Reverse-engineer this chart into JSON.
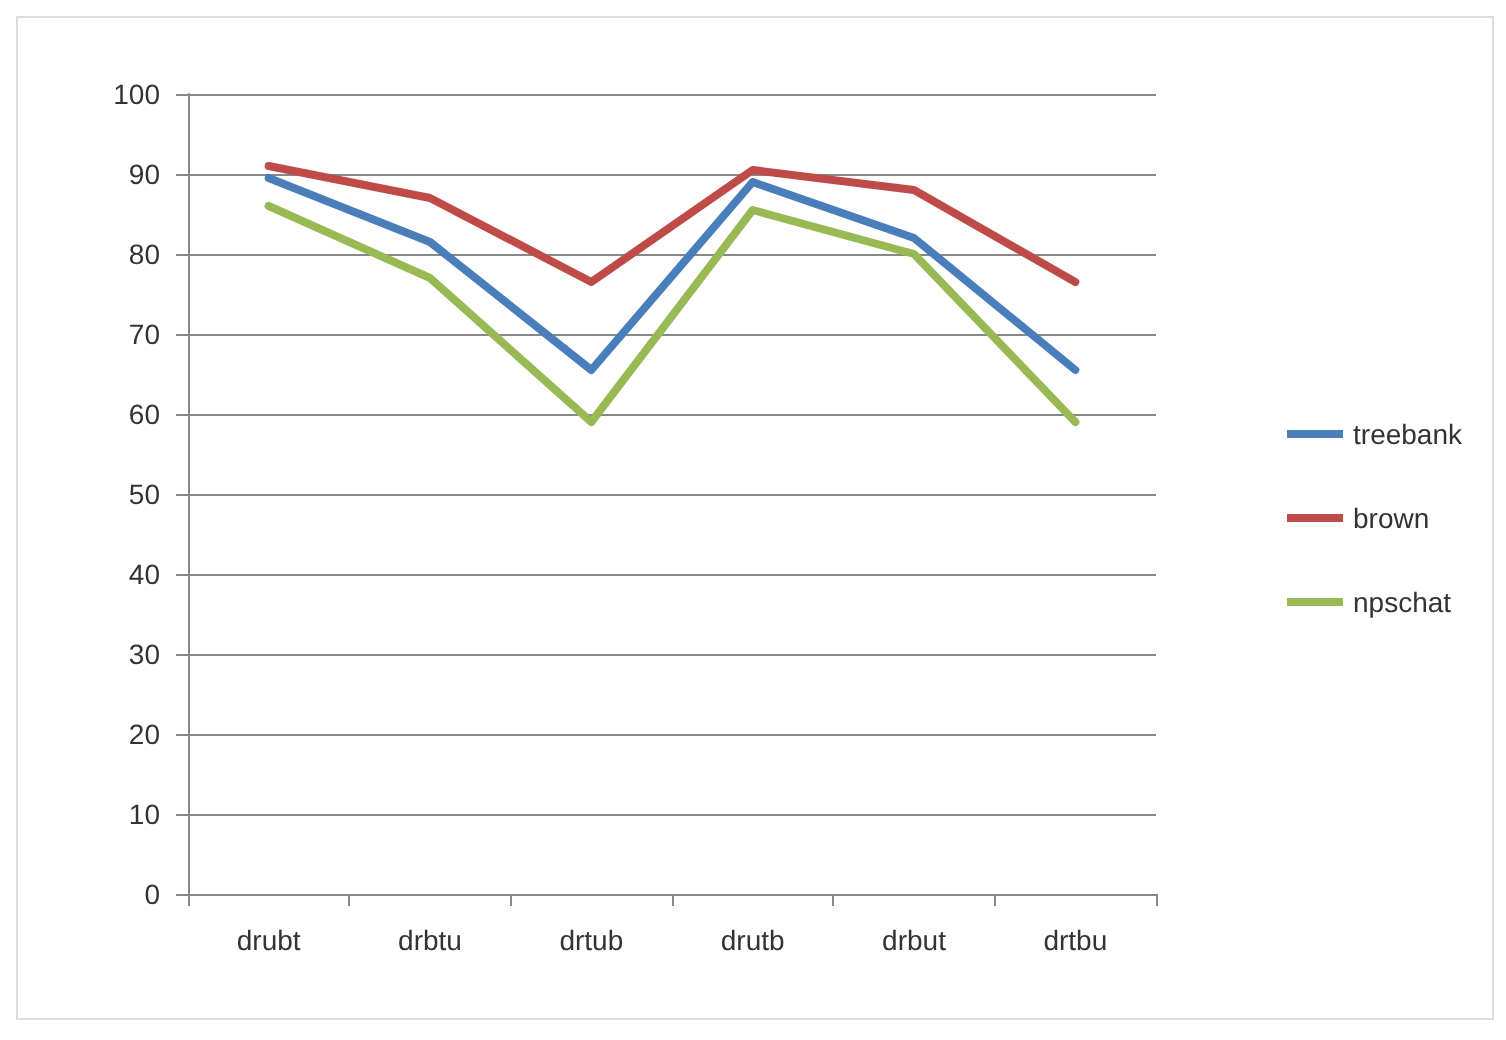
{
  "chart_data": {
    "type": "line",
    "categories": [
      "drubt",
      "drbtu",
      "drtub",
      "drutb",
      "drbut",
      "drtbu"
    ],
    "series": [
      {
        "name": "treebank",
        "color": "#4a7ebb",
        "values": [
          89.5,
          81.5,
          65.5,
          89,
          82,
          65.5
        ]
      },
      {
        "name": "brown",
        "color": "#be4b48",
        "values": [
          91,
          87,
          76.5,
          90.5,
          88,
          76.5
        ]
      },
      {
        "name": "npschat",
        "color": "#98b954",
        "values": [
          86,
          77,
          59,
          85.5,
          80,
          59
        ]
      }
    ],
    "ylim": [
      0,
      100
    ],
    "yticks": [
      0,
      10,
      20,
      30,
      40,
      50,
      60,
      70,
      80,
      90,
      100
    ],
    "grid": "y",
    "legend": "right",
    "marker": "none",
    "line_style": "solid"
  }
}
